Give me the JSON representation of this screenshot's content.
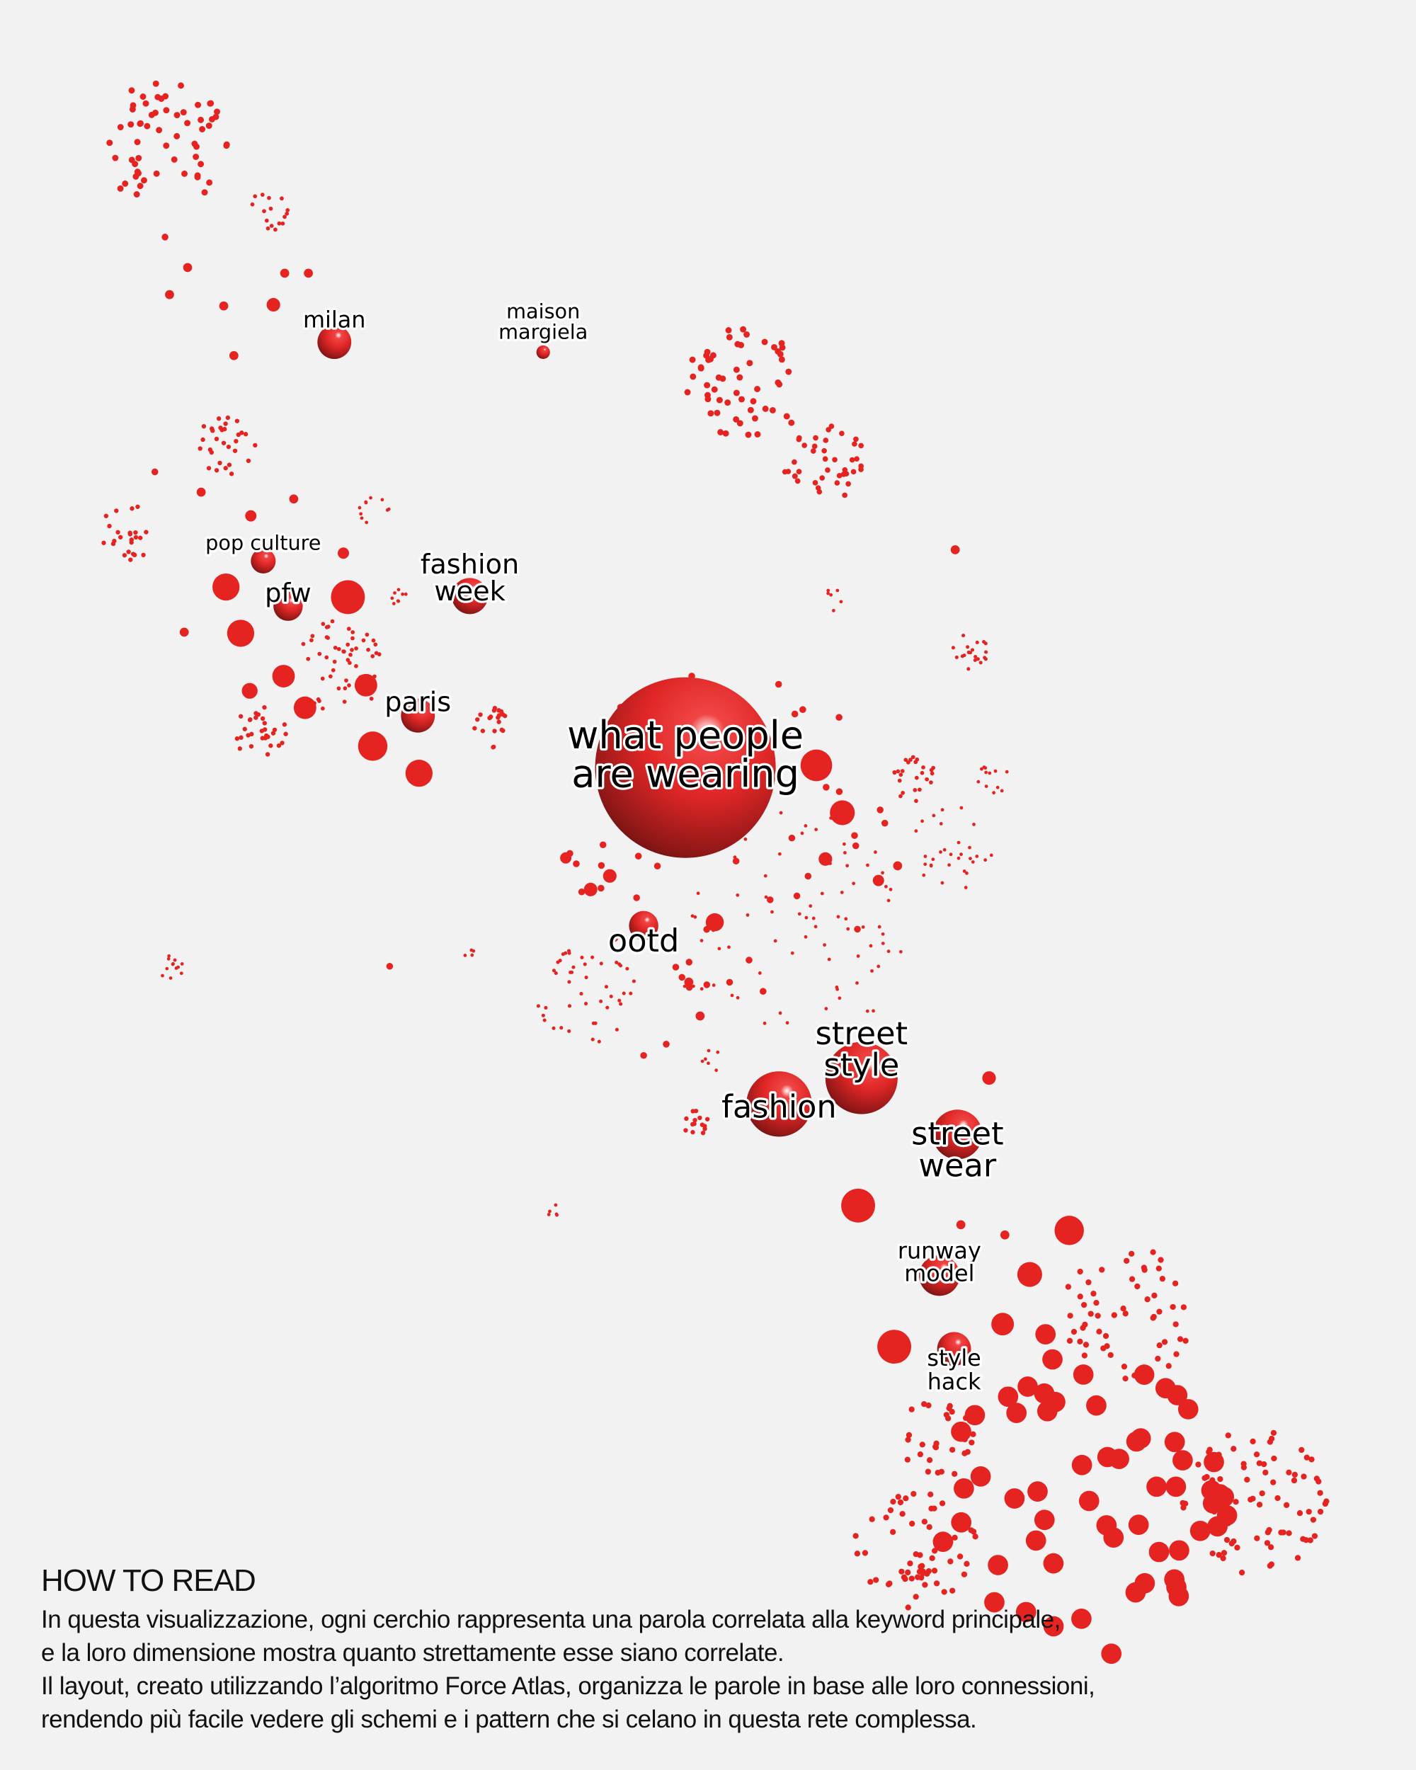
{
  "colors": {
    "node": "#e52421",
    "background": "#f2f2f2",
    "label": "#000000",
    "label_outline": "#ffffff"
  },
  "nodes": [
    {
      "id": "main",
      "lines": [
        "what people",
        "are wearing"
      ]
    },
    {
      "id": "milan",
      "lines": [
        "milan"
      ]
    },
    {
      "id": "maison-margiela",
      "lines": [
        "maison",
        "margiela"
      ]
    },
    {
      "id": "pop-culture",
      "lines": [
        "pop culture"
      ]
    },
    {
      "id": "pfw",
      "lines": [
        "pfw"
      ]
    },
    {
      "id": "fashion-week",
      "lines": [
        "fashion",
        "week"
      ]
    },
    {
      "id": "paris",
      "lines": [
        "paris"
      ]
    },
    {
      "id": "ootd",
      "lines": [
        "ootd"
      ]
    },
    {
      "id": "street-style",
      "lines": [
        "street",
        "style"
      ]
    },
    {
      "id": "fashion",
      "lines": [
        "fashion"
      ]
    },
    {
      "id": "street-wear",
      "lines": [
        "street",
        "wear"
      ]
    },
    {
      "id": "runway-model",
      "lines": [
        "runway",
        "model"
      ]
    },
    {
      "id": "style-hack",
      "lines": [
        "style",
        "hack"
      ]
    }
  ],
  "how_to_read": {
    "title": "HOW TO READ",
    "lines": [
      "In questa visualizzazione, ogni cerchio rappresenta una parola correlata alla keyword principale,",
      "e la loro dimensione mostra quanto strettamente esse siano correlate.",
      "Il layout, creato utilizzando l’algoritmo Force Atlas, organizza le parole in base alle loro connessioni,",
      "rendendo più facile vedere gli schemi e i pattern che si celano in questa rete complessa."
    ]
  }
}
